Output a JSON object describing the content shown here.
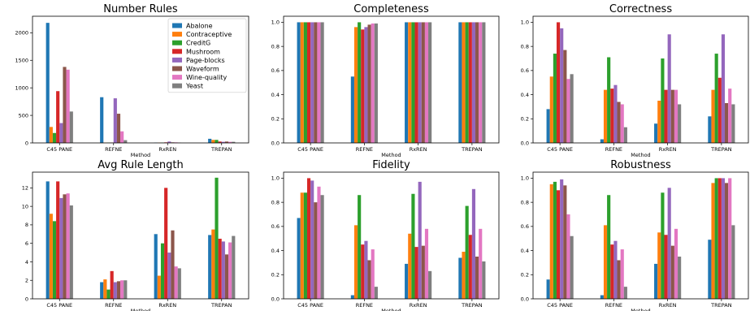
{
  "colors": [
    "#1f77b4",
    "#ff7f0e",
    "#2ca02c",
    "#d62728",
    "#9467bd",
    "#8c564b",
    "#e377c2",
    "#7f7f7f"
  ],
  "chart_data": [
    {
      "type": "bar",
      "title": "Number Rules",
      "xlabel": "Method",
      "categories": [
        "C45 PANE",
        "REFNE",
        "RxREN",
        "TREPAN"
      ],
      "ylim": [
        0,
        2300
      ],
      "yticks": [
        0,
        500,
        1000,
        1500,
        2000
      ],
      "legend": "top-right",
      "series": [
        {
          "name": "Abalone",
          "values": [
            2180,
            830,
            5,
            75
          ]
        },
        {
          "name": "Contraceptive",
          "values": [
            290,
            5,
            5,
            55
          ]
        },
        {
          "name": "CreditG",
          "values": [
            180,
            5,
            5,
            55
          ]
        },
        {
          "name": "Mushroom",
          "values": [
            940,
            5,
            10,
            25
          ]
        },
        {
          "name": "Page-blocks",
          "values": [
            360,
            810,
            25,
            20
          ]
        },
        {
          "name": "Waveform",
          "values": [
            1380,
            530,
            10,
            25
          ]
        },
        {
          "name": "Wine-quality",
          "values": [
            1330,
            210,
            10,
            20
          ]
        },
        {
          "name": "Yeast",
          "values": [
            570,
            50,
            5,
            20
          ]
        }
      ]
    },
    {
      "type": "bar",
      "title": "Completeness",
      "xlabel": "Method",
      "categories": [
        "C45 PANE",
        "REFNE",
        "RxREN",
        "TREPAN"
      ],
      "ylim": [
        0,
        1.05
      ],
      "yticks": [
        0.0,
        0.2,
        0.4,
        0.6,
        0.8,
        1.0
      ],
      "series": [
        {
          "name": "Abalone",
          "values": [
            1.0,
            0.55,
            1.0,
            1.0
          ]
        },
        {
          "name": "Contraceptive",
          "values": [
            1.0,
            0.96,
            1.0,
            1.0
          ]
        },
        {
          "name": "CreditG",
          "values": [
            1.0,
            1.0,
            1.0,
            1.0
          ]
        },
        {
          "name": "Mushroom",
          "values": [
            1.0,
            0.94,
            1.0,
            1.0
          ]
        },
        {
          "name": "Page-blocks",
          "values": [
            1.0,
            0.96,
            1.0,
            1.0
          ]
        },
        {
          "name": "Waveform",
          "values": [
            1.0,
            0.98,
            1.0,
            1.0
          ]
        },
        {
          "name": "Wine-quality",
          "values": [
            1.0,
            0.99,
            1.0,
            1.0
          ]
        },
        {
          "name": "Yeast",
          "values": [
            1.0,
            0.99,
            1.0,
            1.0
          ]
        }
      ]
    },
    {
      "type": "bar",
      "title": "Correctness",
      "xlabel": "Method",
      "categories": [
        "C45 PANE",
        "REFNE",
        "RxREN",
        "TREPAN"
      ],
      "ylim": [
        0,
        1.05
      ],
      "yticks": [
        0.0,
        0.2,
        0.4,
        0.6,
        0.8,
        1.0
      ],
      "series": [
        {
          "name": "Abalone",
          "values": [
            0.28,
            0.03,
            0.16,
            0.22
          ]
        },
        {
          "name": "Contraceptive",
          "values": [
            0.55,
            0.44,
            0.35,
            0.44
          ]
        },
        {
          "name": "CreditG",
          "values": [
            0.74,
            0.71,
            0.7,
            0.74
          ]
        },
        {
          "name": "Mushroom",
          "values": [
            1.0,
            0.45,
            0.44,
            0.54
          ]
        },
        {
          "name": "Page-blocks",
          "values": [
            0.95,
            0.48,
            0.9,
            0.9
          ]
        },
        {
          "name": "Waveform",
          "values": [
            0.77,
            0.34,
            0.44,
            0.33
          ]
        },
        {
          "name": "Wine-quality",
          "values": [
            0.53,
            0.32,
            0.44,
            0.45
          ]
        },
        {
          "name": "Yeast",
          "values": [
            0.57,
            0.13,
            0.32,
            0.32
          ]
        }
      ]
    },
    {
      "type": "bar",
      "title": "Avg Rule Length",
      "xlabel": "Method",
      "categories": [
        "C45 PANE",
        "REFNE",
        "RxREN",
        "TREPAN"
      ],
      "ylim": [
        0,
        13.7
      ],
      "yticks": [
        0,
        2,
        4,
        6,
        8,
        10,
        12
      ],
      "series": [
        {
          "name": "Abalone",
          "values": [
            12.7,
            1.8,
            7.0,
            6.9
          ]
        },
        {
          "name": "Contraceptive",
          "values": [
            9.2,
            2.1,
            2.5,
            7.5
          ]
        },
        {
          "name": "CreditG",
          "values": [
            8.4,
            1.0,
            6.0,
            13.1
          ]
        },
        {
          "name": "Mushroom",
          "values": [
            12.7,
            3.0,
            12.0,
            6.5
          ]
        },
        {
          "name": "Page-blocks",
          "values": [
            10.9,
            1.8,
            5.0,
            6.2
          ]
        },
        {
          "name": "Waveform",
          "values": [
            11.3,
            1.9,
            7.4,
            4.8
          ]
        },
        {
          "name": "Wine-quality",
          "values": [
            11.4,
            2.0,
            3.5,
            6.1
          ]
        },
        {
          "name": "Yeast",
          "values": [
            10.1,
            2.0,
            3.3,
            6.8
          ]
        }
      ]
    },
    {
      "type": "bar",
      "title": "Fidelity",
      "xlabel": "Method",
      "categories": [
        "C45 PANE",
        "REFNE",
        "RxREN",
        "TREPAN"
      ],
      "ylim": [
        0,
        1.05
      ],
      "yticks": [
        0.0,
        0.2,
        0.4,
        0.6,
        0.8,
        1.0
      ],
      "series": [
        {
          "name": "Abalone",
          "values": [
            0.67,
            0.03,
            0.29,
            0.34
          ]
        },
        {
          "name": "Contraceptive",
          "values": [
            0.88,
            0.61,
            0.54,
            0.39
          ]
        },
        {
          "name": "CreditG",
          "values": [
            0.88,
            0.86,
            0.87,
            0.77
          ]
        },
        {
          "name": "Mushroom",
          "values": [
            1.0,
            0.45,
            0.43,
            0.53
          ]
        },
        {
          "name": "Page-blocks",
          "values": [
            0.98,
            0.48,
            0.97,
            0.91
          ]
        },
        {
          "name": "Waveform",
          "values": [
            0.8,
            0.32,
            0.44,
            0.35
          ]
        },
        {
          "name": "Wine-quality",
          "values": [
            0.93,
            0.41,
            0.58,
            0.58
          ]
        },
        {
          "name": "Yeast",
          "values": [
            0.86,
            0.1,
            0.23,
            0.31
          ]
        }
      ]
    },
    {
      "type": "bar",
      "title": "Robustness",
      "xlabel": "Method",
      "categories": [
        "C45 PANE",
        "REFNE",
        "RxREN",
        "TREPAN"
      ],
      "ylim": [
        0,
        1.05
      ],
      "yticks": [
        0.0,
        0.2,
        0.4,
        0.6,
        0.8,
        1.0
      ],
      "series": [
        {
          "name": "Abalone",
          "values": [
            0.16,
            0.03,
            0.29,
            0.49
          ]
        },
        {
          "name": "Contraceptive",
          "values": [
            0.95,
            0.61,
            0.55,
            0.96
          ]
        },
        {
          "name": "CreditG",
          "values": [
            0.97,
            0.86,
            0.88,
            1.0
          ]
        },
        {
          "name": "Mushroom",
          "values": [
            0.9,
            0.45,
            0.53,
            1.0
          ]
        },
        {
          "name": "Page-blocks",
          "values": [
            0.99,
            0.48,
            0.92,
            1.0
          ]
        },
        {
          "name": "Waveform",
          "values": [
            0.94,
            0.32,
            0.44,
            0.96
          ]
        },
        {
          "name": "Wine-quality",
          "values": [
            0.7,
            0.41,
            0.58,
            1.0
          ]
        },
        {
          "name": "Yeast",
          "values": [
            0.52,
            0.1,
            0.35,
            0.61
          ]
        }
      ]
    }
  ]
}
